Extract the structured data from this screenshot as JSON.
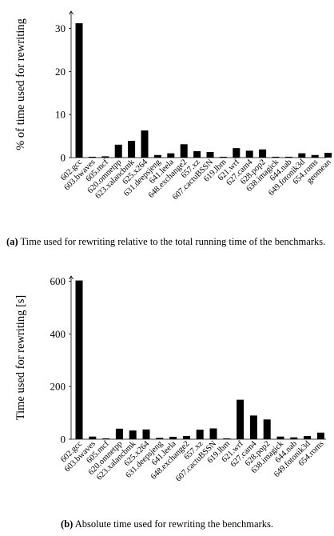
{
  "chart_data": [
    {
      "type": "bar",
      "ylabel": "% of time used for rewriting",
      "ylim": [
        0,
        34
      ],
      "yticks": [
        0,
        10,
        20,
        30
      ],
      "categories": [
        "602.gcc",
        "603.bwaves",
        "605.mcf",
        "620.omnetpp",
        "623.xalancbmk",
        "625.x264",
        "631.deepsjeng",
        "641.leela",
        "648.exchange2",
        "657.xz",
        "607.cactuBSSN",
        "619.lbm",
        "621.wrf",
        "627.cam4",
        "628.pop2",
        "638.imagick",
        "644.nab",
        "649.fotonik3d",
        "654.roms",
        "geomean"
      ],
      "values": [
        31.2,
        0.2,
        0.3,
        3.0,
        3.9,
        6.3,
        0.6,
        1.0,
        3.1,
        1.5,
        1.3,
        0.2,
        2.2,
        1.6,
        1.9,
        0.2,
        0.2,
        1.0,
        0.6,
        1.1
      ],
      "grid": false
    },
    {
      "type": "bar",
      "ylabel": "Time used for rewriting [s]",
      "ylim": [
        0,
        620
      ],
      "yticks": [
        0,
        200,
        400,
        600
      ],
      "categories": [
        "602.gcc",
        "603.bwaves",
        "605.mcf",
        "620.omnetpp",
        "623.xalancbmk",
        "625.x264",
        "631.deepsjeng",
        "641.leela",
        "648.exchange2",
        "657.xz",
        "607.cactuBSSN",
        "619.lbm",
        "621.wrf",
        "627.cam4",
        "628.pop2",
        "638.imagick",
        "644.nab",
        "649.fotonik3d",
        "654.roms"
      ],
      "values": [
        603,
        10,
        3,
        40,
        33,
        37,
        5,
        9,
        12,
        36,
        41,
        3,
        150,
        90,
        75,
        10,
        7,
        12,
        25
      ],
      "grid": false
    }
  ],
  "captions": [
    {
      "label": "(a)",
      "text": "Time used for rewriting relative to the total running time of the benchmarks."
    },
    {
      "label": "(b)",
      "text": "Absolute time used for rewriting the benchmarks."
    }
  ]
}
